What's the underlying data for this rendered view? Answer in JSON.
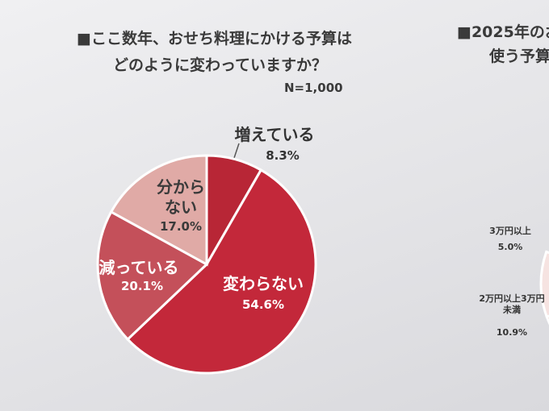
{
  "chart_data": [
    {
      "type": "pie",
      "title": [
        "■ここ数年、おせち料理にかける予算は",
        "どのように変わっていますか？"
      ],
      "subtitle": "N=1,000",
      "categories": [
        "増えている",
        "変わらない",
        "減っている",
        "分からない"
      ],
      "values": [
        8.3,
        54.6,
        20.1,
        17
      ],
      "value_labels": [
        "8.3%",
        "54.6%",
        "20.1%",
        "17.0%"
      ],
      "colors": [
        "#b82636",
        "#c3283a",
        "#c4505a",
        "#e0aaa6"
      ]
    },
    {
      "type": "pie",
      "title": [
        "■2025年のお",
        "使う予算"
      ],
      "categories": [
        "3万円以上",
        "2万円以上3万円未満"
      ],
      "values": [
        5,
        10.9
      ],
      "value_labels": [
        "5.0%",
        "10.9%"
      ],
      "colors": [
        "#f1d5d3",
        "#f6e3e1"
      ]
    }
  ]
}
